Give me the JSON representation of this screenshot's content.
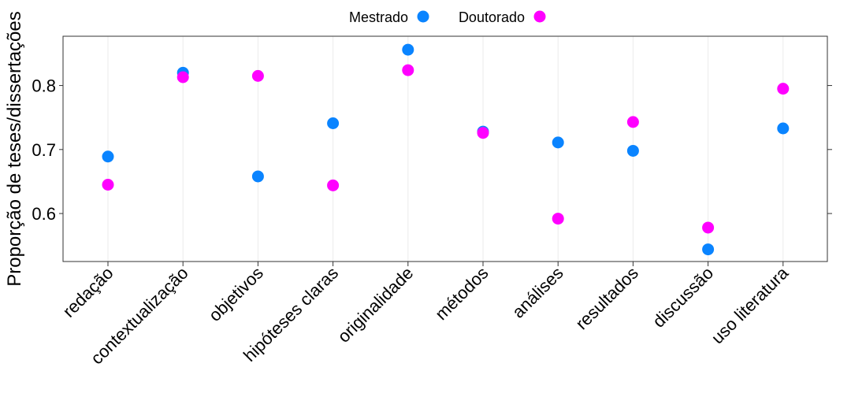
{
  "chart_data": {
    "type": "scatter",
    "title": "",
    "xlabel": "",
    "ylabel": "Proporção de teses/dissertações",
    "categories": [
      "redação",
      "contextualização",
      "objetivos",
      "hipóteses claras",
      "originalidade",
      "métodos",
      "análises",
      "resultados",
      "discussão",
      "uso literatura"
    ],
    "series": [
      {
        "name": "Mestrado",
        "color": "#0a84ff",
        "values": [
          0.689,
          0.82,
          0.658,
          0.741,
          0.856,
          0.728,
          0.711,
          0.698,
          0.544,
          0.733
        ]
      },
      {
        "name": "Doutorado",
        "color": "#ff00ff",
        "values": [
          0.645,
          0.813,
          0.815,
          0.644,
          0.824,
          0.726,
          0.592,
          0.743,
          0.578,
          0.795
        ]
      }
    ],
    "ylim": [
      0.525,
      0.877
    ],
    "yticks": [
      "0.6",
      "0.7",
      "0.8"
    ],
    "grid": true,
    "legend_position": "top"
  }
}
